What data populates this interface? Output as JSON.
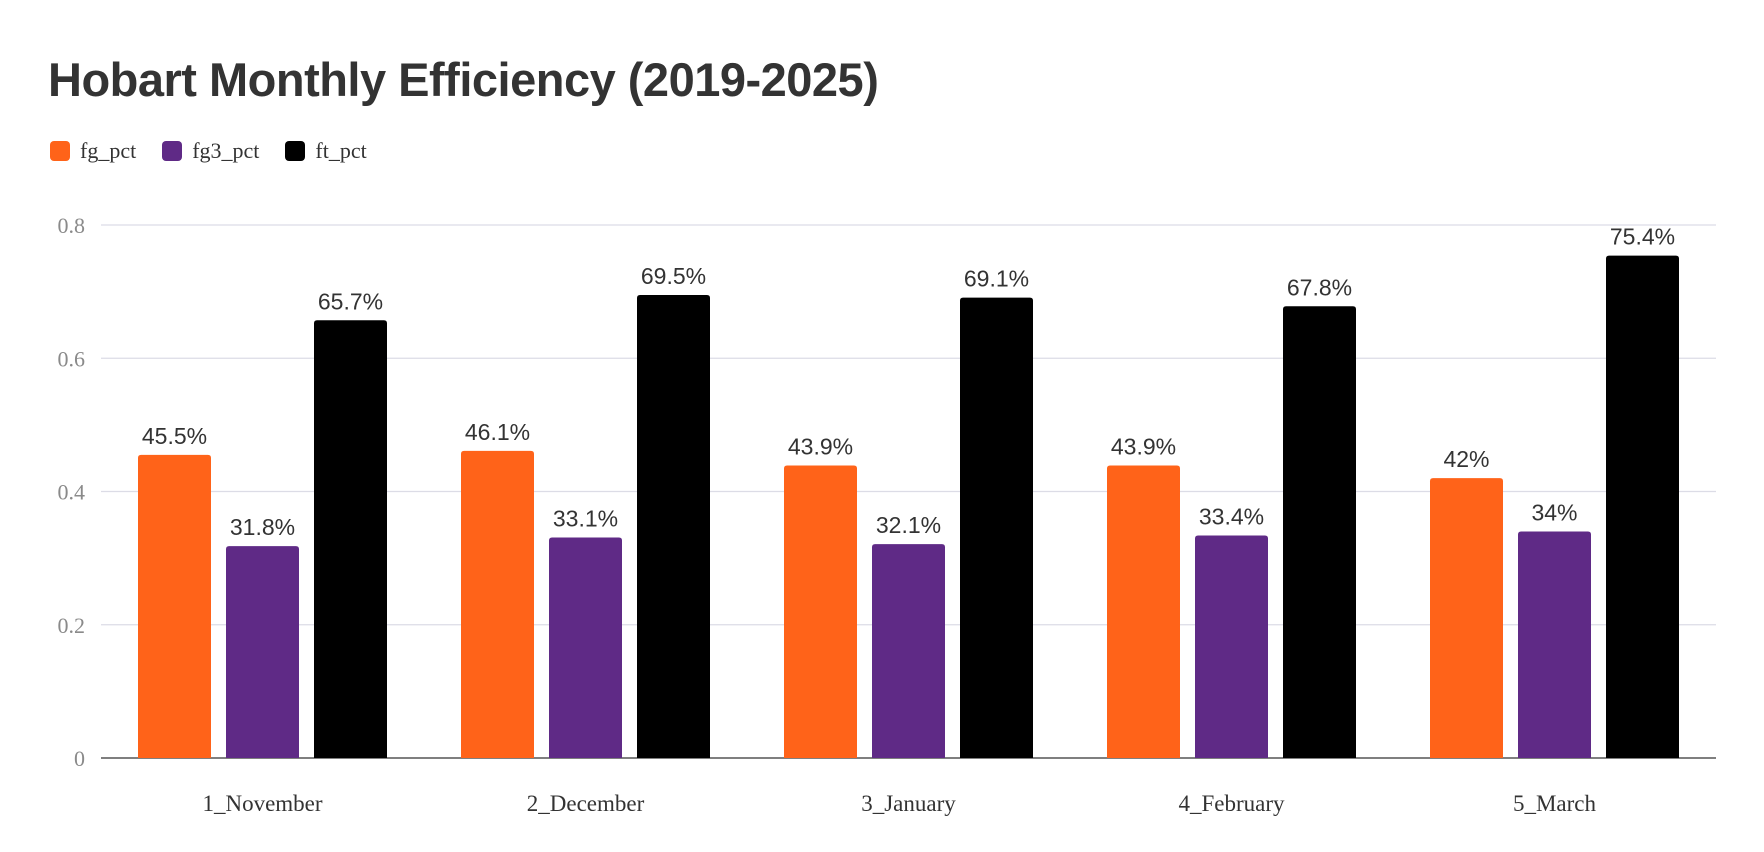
{
  "chart_data": {
    "type": "bar",
    "title": "Hobart Monthly Efficiency (2019-2025)",
    "xlabel": "",
    "ylabel": "",
    "ylim": [
      0,
      0.8
    ],
    "yticks": [
      "0",
      "0.2",
      "0.4",
      "0.6",
      "0.8"
    ],
    "grid": true,
    "legend_position": "top-left",
    "categories": [
      "1_November",
      "2_December",
      "3_January",
      "4_February",
      "5_March"
    ],
    "series": [
      {
        "name": "fg_pct",
        "color": "#ff6319",
        "values": [
          0.455,
          0.461,
          0.439,
          0.439,
          0.42
        ],
        "labels": [
          "45.5%",
          "46.1%",
          "43.9%",
          "43.9%",
          "42%"
        ]
      },
      {
        "name": "fg3_pct",
        "color": "#5f2a86",
        "values": [
          0.318,
          0.331,
          0.321,
          0.334,
          0.34
        ],
        "labels": [
          "31.8%",
          "33.1%",
          "32.1%",
          "33.4%",
          "34%"
        ]
      },
      {
        "name": "ft_pct",
        "color": "#000000",
        "values": [
          0.657,
          0.695,
          0.691,
          0.678,
          0.754
        ],
        "labels": [
          "65.7%",
          "69.5%",
          "69.1%",
          "67.8%",
          "75.4%"
        ]
      }
    ]
  }
}
